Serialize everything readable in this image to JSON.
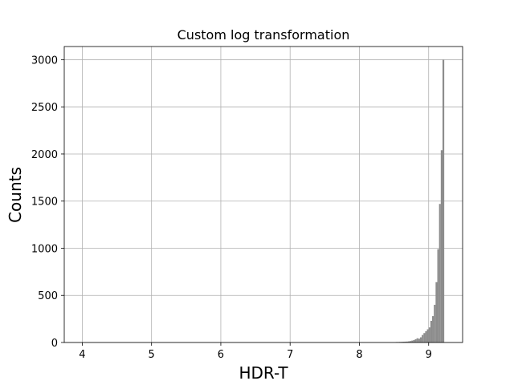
{
  "chart_data": {
    "type": "bar",
    "title": "Custom log transformation",
    "xlabel": "HDR-T",
    "ylabel": "Counts",
    "xlim": [
      3.74,
      9.49
    ],
    "ylim": [
      0,
      3140
    ],
    "x_ticks": [
      4,
      5,
      6,
      7,
      8,
      9
    ],
    "y_ticks": [
      0,
      500,
      1000,
      1500,
      2000,
      2500,
      3000
    ],
    "grid": true,
    "bar_color": "#8c8c8c",
    "bin_width": 0.025,
    "bins": [
      {
        "x": 8.525,
        "value": 5
      },
      {
        "x": 8.55,
        "value": 5
      },
      {
        "x": 8.575,
        "value": 6
      },
      {
        "x": 8.6,
        "value": 7
      },
      {
        "x": 8.625,
        "value": 8
      },
      {
        "x": 8.65,
        "value": 9
      },
      {
        "x": 8.675,
        "value": 10
      },
      {
        "x": 8.7,
        "value": 12
      },
      {
        "x": 8.725,
        "value": 15
      },
      {
        "x": 8.75,
        "value": 20
      },
      {
        "x": 8.775,
        "value": 25
      },
      {
        "x": 8.8,
        "value": 35
      },
      {
        "x": 8.825,
        "value": 45
      },
      {
        "x": 8.85,
        "value": 40
      },
      {
        "x": 8.875,
        "value": 55
      },
      {
        "x": 8.9,
        "value": 80
      },
      {
        "x": 8.925,
        "value": 100
      },
      {
        "x": 8.95,
        "value": 120
      },
      {
        "x": 8.975,
        "value": 140
      },
      {
        "x": 9.0,
        "value": 160
      },
      {
        "x": 9.025,
        "value": 230
      },
      {
        "x": 9.05,
        "value": 280
      },
      {
        "x": 9.075,
        "value": 400
      },
      {
        "x": 9.1,
        "value": 640
      },
      {
        "x": 9.125,
        "value": 990
      },
      {
        "x": 9.15,
        "value": 1470
      },
      {
        "x": 9.175,
        "value": 2040
      },
      {
        "x": 9.2,
        "value": 3000
      }
    ]
  }
}
